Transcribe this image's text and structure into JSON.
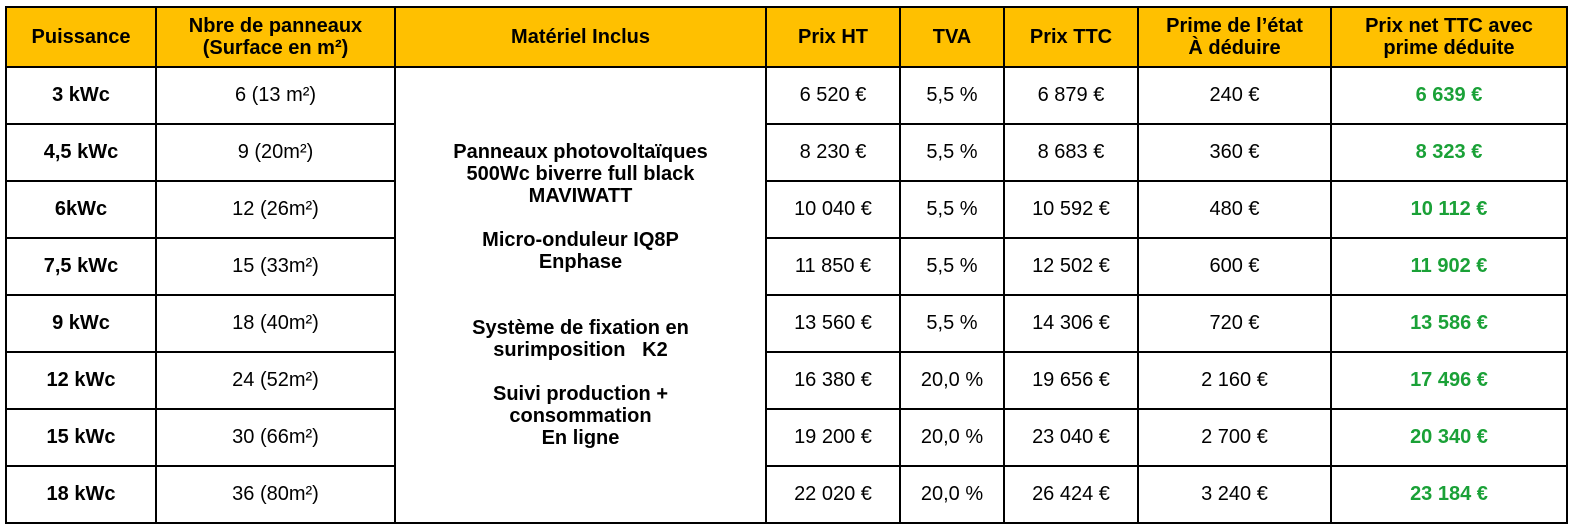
{
  "headers": {
    "puissance": "Puissance",
    "panneaux_l1": "Nbre de panneaux",
    "panneaux_l2": "(Surface en m²)",
    "materiel": "Matériel Inclus",
    "prix_ht": "Prix HT",
    "tva": "TVA",
    "prix_ttc": "Prix TTC",
    "prime_l1": "Prime de l’état",
    "prime_l2": "À déduire",
    "net_l1": "Prix net TTC avec",
    "net_l2": "prime déduite"
  },
  "material": {
    "line1": "Panneaux photovoltaïques",
    "line2": "500Wc biverre full black",
    "line3": "MAVIWATT",
    "line4": "Micro-onduleur IQ8P",
    "line5": "Enphase",
    "line6": "Système de fixation en",
    "line7": "surimposition   K2",
    "line8": "Suivi production +",
    "line9": "consommation",
    "line10": "En ligne"
  },
  "rows": [
    {
      "puissance": "3 kWc",
      "panneaux": "6 (13 m²)",
      "prix_ht": "6 520 €",
      "tva": "5,5 %",
      "prix_ttc": "6 879 €",
      "prime": "240 €",
      "net": "6 639 €"
    },
    {
      "puissance": "4,5 kWc",
      "panneaux": "9 (20m²)",
      "prix_ht": "8 230 €",
      "tva": "5,5 %",
      "prix_ttc": "8 683 €",
      "prime": "360 €",
      "net": "8 323 €"
    },
    {
      "puissance": "6kWc",
      "panneaux": "12 (26m²)",
      "prix_ht": "10 040 €",
      "tva": "5,5 %",
      "prix_ttc": "10 592 €",
      "prime": "480 €",
      "net": "10 112 €"
    },
    {
      "puissance": "7,5 kWc",
      "panneaux": "15 (33m²)",
      "prix_ht": "11 850 €",
      "tva": "5,5 %",
      "prix_ttc": "12 502 €",
      "prime": "600 €",
      "net": "11 902 €"
    },
    {
      "puissance": "9 kWc",
      "panneaux": "18 (40m²)",
      "prix_ht": "13 560 €",
      "tva": "5,5 %",
      "prix_ttc": "14 306 €",
      "prime": "720 €",
      "net": "13 586 €"
    },
    {
      "puissance": "12 kWc",
      "panneaux": "24 (52m²)",
      "prix_ht": "16 380 €",
      "tva": "20,0 %",
      "prix_ttc": "19 656 €",
      "prime": "2 160 €",
      "net": "17 496 €"
    },
    {
      "puissance": "15 kWc",
      "panneaux": "30 (66m²)",
      "prix_ht": "19 200 €",
      "tva": "20,0 %",
      "prix_ttc": "23 040 €",
      "prime": "2 700 €",
      "net": "20 340 €"
    },
    {
      "puissance": "18 kWc",
      "panneaux": "36 (80m²)",
      "prix_ht": "22 020 €",
      "tva": "20,0 %",
      "prix_ttc": "26 424 €",
      "prime": "3 240 €",
      "net": "23 184 €"
    }
  ],
  "colors": {
    "header_bg": "#ffc000",
    "net_price": "#1aa137"
  }
}
